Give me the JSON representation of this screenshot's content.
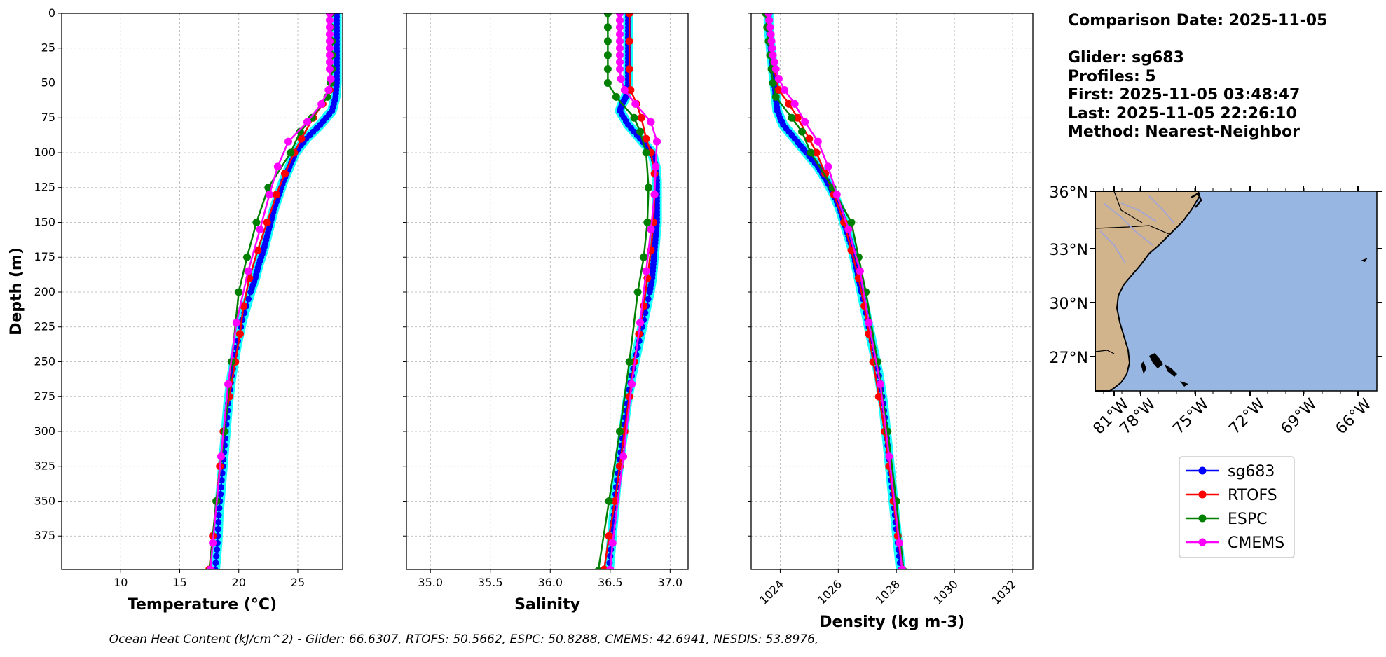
{
  "info": {
    "comparison_date": "Comparison Date: 2025-11-05",
    "glider": "Glider: sg683",
    "profiles": "Profiles: 5",
    "first": "First: 2025-11-05 03:48:47",
    "last": "Last: 2025-11-05 22:26:10",
    "method": "Method: Nearest-Neighbor"
  },
  "footer": "Ocean Heat Content (kJ/cm^2) - Glider: 66.6307,  RTOFS: 50.5662,  ESPC: 50.8288,  CMEMS: 42.6941,  NESDIS: 53.8976,",
  "colors": {
    "sg683": "#0000ff",
    "RTOFS": "#ff0000",
    "ESPC": "#008000",
    "CMEMS": "#ff00ff",
    "envelope": "#00ffff",
    "land": "#d2b48c",
    "ocean": "#97b6e1",
    "rivers": "#a6a6d0"
  },
  "legend": [
    "sg683",
    "RTOFS",
    "ESPC",
    "CMEMS"
  ],
  "chart_data": [
    {
      "type": "line",
      "xlabel": "Temperature (°C)",
      "ylabel": "Depth (m)",
      "xlim": [
        5,
        28.8
      ],
      "ylim": [
        399,
        0
      ],
      "xticks": [
        10,
        15,
        20,
        25
      ],
      "yticks": [
        0,
        25,
        50,
        75,
        100,
        125,
        150,
        175,
        200,
        225,
        250,
        275,
        300,
        325,
        350,
        375
      ],
      "grid": true,
      "series": [
        {
          "name": "sg683",
          "depth": [
            0,
            10,
            20,
            30,
            40,
            50,
            60,
            70,
            80,
            90,
            100,
            110,
            120,
            130,
            140,
            150,
            160,
            170,
            180,
            190,
            200,
            220,
            240,
            260,
            280,
            300,
            320,
            340,
            360,
            380,
            399
          ],
          "values": [
            28.3,
            28.3,
            28.3,
            28.3,
            28.3,
            28.3,
            28.2,
            27.9,
            26.9,
            25.7,
            24.8,
            24.3,
            23.8,
            23.4,
            23.0,
            22.7,
            22.4,
            22.1,
            21.7,
            21.4,
            21.0,
            20.3,
            19.8,
            19.4,
            19.1,
            18.9,
            18.7,
            18.5,
            18.3,
            18.2,
            18.0
          ]
        },
        {
          "name": "RTOFS",
          "depth": [
            0,
            20,
            40,
            55,
            65,
            75,
            90,
            100,
            115,
            130,
            150,
            170,
            190,
            210,
            230,
            250,
            275,
            300,
            325,
            350,
            375,
            399
          ],
          "values": [
            27.8,
            27.8,
            27.8,
            27.7,
            27.1,
            26.3,
            25.3,
            24.7,
            23.9,
            23.2,
            22.4,
            21.6,
            20.9,
            20.4,
            20.1,
            19.7,
            19.2,
            18.7,
            18.4,
            18.1,
            17.8,
            17.5
          ]
        },
        {
          "name": "ESPC",
          "depth": [
            0,
            10,
            20,
            30,
            40,
            50,
            60,
            75,
            85,
            100,
            125,
            150,
            175,
            200,
            250,
            300,
            350,
            400
          ],
          "values": [
            27.8,
            27.8,
            27.9,
            27.9,
            27.9,
            27.8,
            27.5,
            26.2,
            25.2,
            24.4,
            22.5,
            21.5,
            20.7,
            20.0,
            19.4,
            18.8,
            18.1,
            17.5
          ]
        },
        {
          "name": "CMEMS",
          "depth": [
            0,
            5,
            10,
            15,
            20,
            25,
            30,
            35,
            40,
            47,
            55,
            65,
            78,
            92,
            110,
            130,
            155,
            185,
            222,
            266,
            318,
            380,
            399
          ],
          "values": [
            27.7,
            27.7,
            27.7,
            27.7,
            27.7,
            27.7,
            27.7,
            27.7,
            27.7,
            27.8,
            27.6,
            27.0,
            25.8,
            24.2,
            23.3,
            22.6,
            21.8,
            20.8,
            19.8,
            19.1,
            18.5,
            17.8,
            17.6
          ]
        }
      ]
    },
    {
      "type": "line",
      "xlabel": "Salinity",
      "ylim": [
        399,
        0
      ],
      "xlim": [
        34.8,
        37.15
      ],
      "xticks": [
        35.0,
        35.5,
        36.0,
        36.5,
        37.0
      ],
      "xticklabels": [
        "35.0",
        "35.5",
        "36.0",
        "36.5",
        "37.0"
      ],
      "yticks": [
        0,
        25,
        50,
        75,
        100,
        125,
        150,
        175,
        200,
        225,
        250,
        275,
        300,
        325,
        350,
        375
      ],
      "grid": true,
      "series": [
        {
          "name": "sg683",
          "depth": [
            0,
            10,
            20,
            30,
            40,
            50,
            60,
            65,
            70,
            80,
            90,
            100,
            110,
            120,
            130,
            140,
            150,
            160,
            170,
            180,
            190,
            200,
            220,
            240,
            260,
            280,
            300,
            320,
            340,
            360,
            380,
            399
          ],
          "values": [
            36.65,
            36.65,
            36.65,
            36.65,
            36.65,
            36.65,
            36.63,
            36.6,
            36.58,
            36.65,
            36.75,
            36.85,
            36.88,
            36.89,
            36.89,
            36.89,
            36.89,
            36.88,
            36.87,
            36.86,
            36.85,
            36.83,
            36.78,
            36.73,
            36.68,
            36.64,
            36.61,
            36.58,
            36.55,
            36.53,
            36.51,
            36.49
          ]
        },
        {
          "name": "RTOFS",
          "depth": [
            0,
            20,
            40,
            55,
            65,
            75,
            90,
            100,
            115,
            130,
            150,
            170,
            190,
            210,
            230,
            250,
            275,
            300,
            325,
            350,
            375,
            399
          ],
          "values": [
            36.66,
            36.66,
            36.66,
            36.67,
            36.72,
            36.76,
            36.8,
            36.84,
            36.87,
            36.87,
            36.86,
            36.84,
            36.81,
            36.78,
            36.74,
            36.7,
            36.66,
            36.62,
            36.58,
            36.54,
            36.49,
            36.45
          ]
        },
        {
          "name": "ESPC",
          "depth": [
            0,
            10,
            20,
            30,
            40,
            50,
            60,
            75,
            85,
            100,
            125,
            150,
            175,
            200,
            250,
            300,
            350,
            400
          ],
          "values": [
            36.48,
            36.48,
            36.48,
            36.48,
            36.48,
            36.48,
            36.55,
            36.7,
            36.75,
            36.8,
            36.82,
            36.81,
            36.78,
            36.73,
            36.66,
            36.58,
            36.49,
            36.4
          ]
        },
        {
          "name": "CMEMS",
          "depth": [
            0,
            5,
            10,
            15,
            20,
            25,
            30,
            35,
            40,
            47,
            55,
            65,
            78,
            92,
            110,
            130,
            155,
            185,
            222,
            266,
            318,
            380,
            399
          ],
          "values": [
            36.58,
            36.58,
            36.58,
            36.58,
            36.58,
            36.58,
            36.58,
            36.58,
            36.58,
            36.59,
            36.62,
            36.71,
            36.84,
            36.89,
            36.88,
            36.87,
            36.84,
            36.8,
            36.75,
            36.68,
            36.61,
            36.52,
            36.5
          ]
        }
      ]
    },
    {
      "type": "line",
      "xlabel": "Density (kg m-3)",
      "ylim": [
        399,
        0
      ],
      "xlim": [
        1023,
        1032.7
      ],
      "xticks": [
        1024,
        1026,
        1028,
        1030,
        1032
      ],
      "yticks": [
        0,
        25,
        50,
        75,
        100,
        125,
        150,
        175,
        200,
        225,
        250,
        275,
        300,
        325,
        350,
        375
      ],
      "grid": true,
      "series": [
        {
          "name": "sg683",
          "depth": [
            0,
            10,
            20,
            30,
            40,
            50,
            60,
            70,
            80,
            90,
            100,
            110,
            120,
            130,
            140,
            150,
            160,
            170,
            180,
            190,
            200,
            220,
            240,
            260,
            280,
            300,
            320,
            340,
            360,
            380,
            399
          ],
          "values": [
            1023.6,
            1023.6,
            1023.65,
            1023.7,
            1023.75,
            1023.8,
            1023.85,
            1023.9,
            1024.1,
            1024.5,
            1024.9,
            1025.3,
            1025.6,
            1025.85,
            1026.05,
            1026.2,
            1026.35,
            1026.5,
            1026.6,
            1026.7,
            1026.8,
            1027.0,
            1027.2,
            1027.4,
            1027.55,
            1027.65,
            1027.75,
            1027.85,
            1027.95,
            1028.05,
            1028.15
          ]
        },
        {
          "name": "RTOFS",
          "depth": [
            0,
            20,
            40,
            55,
            65,
            75,
            90,
            100,
            115,
            130,
            150,
            170,
            190,
            210,
            230,
            250,
            275,
            300,
            325,
            350,
            375,
            399
          ],
          "values": [
            1023.6,
            1023.7,
            1023.8,
            1023.95,
            1024.3,
            1024.6,
            1025.0,
            1025.25,
            1025.55,
            1025.85,
            1026.2,
            1026.45,
            1026.7,
            1026.9,
            1027.05,
            1027.2,
            1027.4,
            1027.6,
            1027.75,
            1027.9,
            1028.05,
            1028.2
          ]
        },
        {
          "name": "ESPC",
          "depth": [
            0,
            10,
            20,
            30,
            40,
            50,
            60,
            75,
            85,
            100,
            125,
            150,
            175,
            200,
            250,
            300,
            350,
            400
          ],
          "values": [
            1023.5,
            1023.55,
            1023.6,
            1023.65,
            1023.7,
            1023.75,
            1023.85,
            1024.4,
            1024.75,
            1025.05,
            1025.8,
            1026.45,
            1026.7,
            1026.95,
            1027.35,
            1027.7,
            1028.0,
            1028.25
          ]
        },
        {
          "name": "CMEMS",
          "depth": [
            0,
            5,
            10,
            15,
            20,
            25,
            30,
            35,
            40,
            47,
            55,
            65,
            78,
            92,
            110,
            130,
            155,
            185,
            222,
            266,
            318,
            380,
            399
          ],
          "values": [
            1023.6,
            1023.62,
            1023.65,
            1023.68,
            1023.7,
            1023.72,
            1023.75,
            1023.8,
            1023.85,
            1023.95,
            1024.15,
            1024.5,
            1024.85,
            1025.3,
            1025.65,
            1025.95,
            1026.35,
            1026.75,
            1027.05,
            1027.45,
            1027.75,
            1028.1,
            1028.2
          ]
        }
      ]
    }
  ],
  "map": {
    "lat_labels": [
      "36°N",
      "33°N",
      "30°N",
      "27°N"
    ],
    "lon_labels": [
      "81°W",
      "78°W",
      "75°W",
      "72°W",
      "69°W",
      "66°W"
    ]
  }
}
